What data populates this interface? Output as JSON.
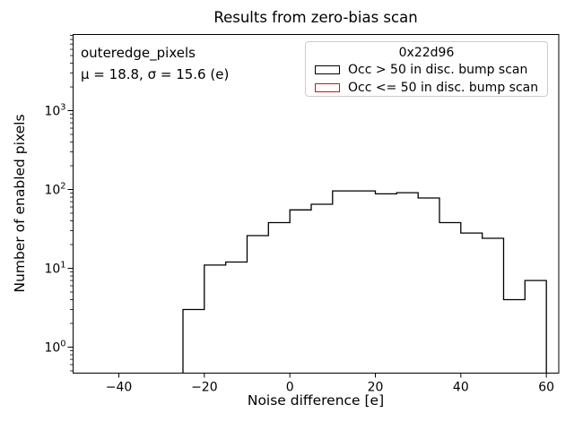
{
  "title": "Results from zero-bias scan",
  "annotation": {
    "dataset": "outeredge_pixels",
    "stats": "μ = 18.8, σ = 15.6 (e)"
  },
  "legend": {
    "title": "0x22d96",
    "entries": [
      {
        "label": "Occ > 50 in disc. bump scan",
        "color": "#000000"
      },
      {
        "label": "Occ <= 50 in disc. bump scan",
        "color": "#ff0000"
      }
    ]
  },
  "chart_data": {
    "type": "histogram",
    "style": "step",
    "title": "Results from zero-bias scan",
    "xlabel": "Noise difference [e]",
    "ylabel": "Number of enabled pixels",
    "yscale": "log",
    "grid": false,
    "legend_position": "upper right",
    "xlim": [
      -50.7,
      62.9
    ],
    "ylim": [
      0.468,
      9250
    ],
    "xticks": [
      -40,
      -20,
      0,
      20,
      40,
      60
    ],
    "ytick_exponents": [
      0,
      1,
      2,
      3
    ],
    "bin_edges": [
      -25,
      -20,
      -15,
      -10,
      -5,
      0,
      5,
      10,
      15,
      20,
      25,
      30,
      35,
      40,
      45,
      50,
      55,
      60
    ],
    "series": [
      {
        "name": "Occ > 50 in disc. bump scan",
        "color": "#000000",
        "counts": [
          3,
          11,
          12,
          26,
          38,
          55,
          65,
          96,
          96,
          88,
          91,
          78,
          38,
          28,
          24,
          4,
          7
        ]
      },
      {
        "name": "Occ <= 50 in disc. bump scan",
        "color": "#ff0000",
        "counts": []
      }
    ],
    "mu": 18.8,
    "sigma": 15.6
  },
  "colors": {
    "series_black": "#000000",
    "series_red": "#ff0000",
    "legend_border": "#cccccc",
    "background": "#ffffff",
    "frame": "#000000"
  }
}
